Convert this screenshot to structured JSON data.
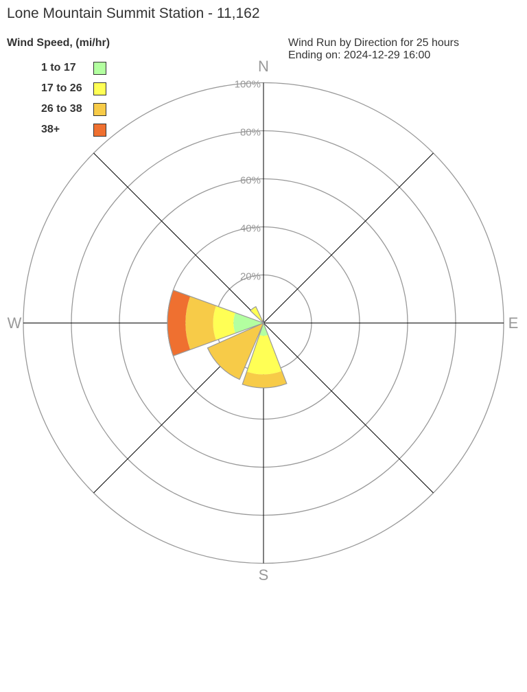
{
  "title": "Lone Mountain Summit Station - 11,162",
  "subtitle": [
    "Wind Run by Direction for 25 hours",
    "Ending on: 2024-12-29 16:00"
  ],
  "chart_data": {
    "type": "wind-rose",
    "legend_title": "Wind Speed, (mi/hr)",
    "legend_placement": "top-left",
    "speed_bins": [
      {
        "label": "1 to 17",
        "color": "#b3ffa0"
      },
      {
        "label": "17 to 26",
        "color": "#ffff55"
      },
      {
        "label": "26 to 38",
        "color": "#f7cb48"
      },
      {
        "label": "38+",
        "color": "#ef7030"
      }
    ],
    "radial_ticks": [
      "20%",
      "40%",
      "60%",
      "80%",
      "100%"
    ],
    "radial_range": [
      0,
      100
    ],
    "compass_labels": {
      "N": "N",
      "E": "E",
      "S": "S",
      "W": "W"
    },
    "sectors": [
      {
        "direction": "W",
        "from_deg": 250,
        "to_deg": 290,
        "cumulative_percent": [
          12.5,
          21,
          32.5,
          40
        ]
      },
      {
        "direction": "SW",
        "from_deg": 203,
        "to_deg": 246,
        "cumulative_percent": [
          0,
          0,
          25.5,
          25.5
        ]
      },
      {
        "direction": "S",
        "from_deg": 159,
        "to_deg": 199,
        "cumulative_percent": [
          5.3,
          21.4,
          27,
          27
        ]
      },
      {
        "direction": "NNW",
        "from_deg": 313,
        "to_deg": 335,
        "cumulative_percent": [
          0,
          7.5,
          7.5,
          7.5
        ]
      }
    ]
  }
}
